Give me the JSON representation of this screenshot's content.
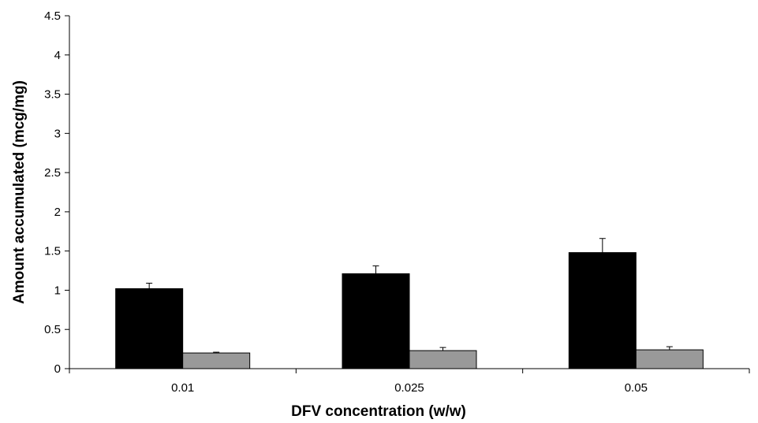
{
  "chart_data": {
    "type": "bar",
    "title": "",
    "xlabel": "DFV concentration (w/w)",
    "ylabel": "Amount accumulated (mcg/mg)",
    "categories": [
      "0.01",
      "0.025",
      "0.05"
    ],
    "ylim": [
      0,
      4.5
    ],
    "yticks": [
      "0",
      "0.5",
      "1",
      "1.5",
      "2",
      "2.5",
      "3",
      "3.5",
      "4",
      "4.5"
    ],
    "grid": false,
    "legend": "none",
    "series": [
      {
        "values": [
          1.02,
          1.21,
          1.48
        ],
        "errors": [
          0.07,
          0.1,
          0.18
        ],
        "color": "#000000"
      },
      {
        "values": [
          0.2,
          0.23,
          0.24
        ],
        "errors": [
          0.01,
          0.04,
          0.04
        ],
        "color": "#999999"
      }
    ]
  }
}
